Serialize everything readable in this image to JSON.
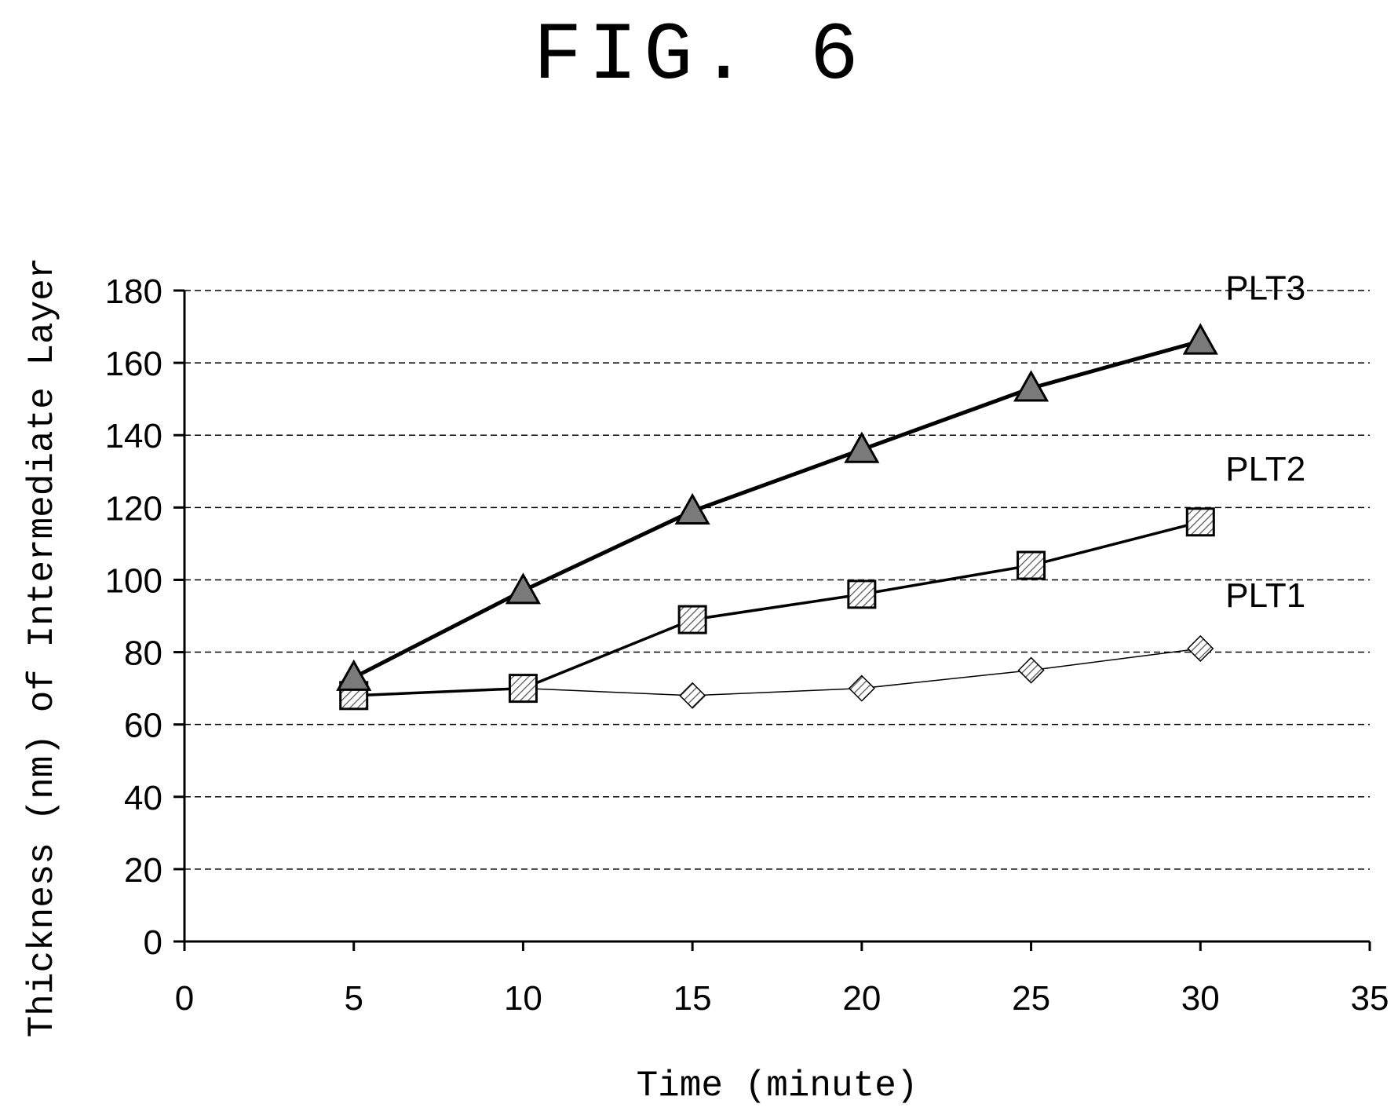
{
  "figure": {
    "title": "FIG. 6"
  },
  "chart_data": {
    "type": "line",
    "title": "FIG. 6",
    "xlabel": "Time (minute)",
    "ylabel": "Thickness (nm) of Intermediate Layer",
    "xlim": [
      0,
      35
    ],
    "ylim": [
      0,
      180
    ],
    "xticks": [
      0,
      5,
      10,
      15,
      20,
      25,
      30,
      35
    ],
    "yticks": [
      0,
      20,
      40,
      60,
      80,
      100,
      120,
      140,
      160,
      180
    ],
    "grid": "horizontal-dashed",
    "x": [
      5,
      10,
      15,
      20,
      25,
      30
    ],
    "series": [
      {
        "name": "PLT1",
        "marker": "diamond",
        "values": [
          68,
          70,
          68,
          70,
          75,
          81
        ]
      },
      {
        "name": "PLT2",
        "marker": "square",
        "values": [
          68,
          70,
          89,
          96,
          104,
          116
        ]
      },
      {
        "name": "PLT3",
        "marker": "triangle",
        "values": [
          73,
          97,
          119,
          136,
          153,
          166
        ]
      }
    ]
  }
}
